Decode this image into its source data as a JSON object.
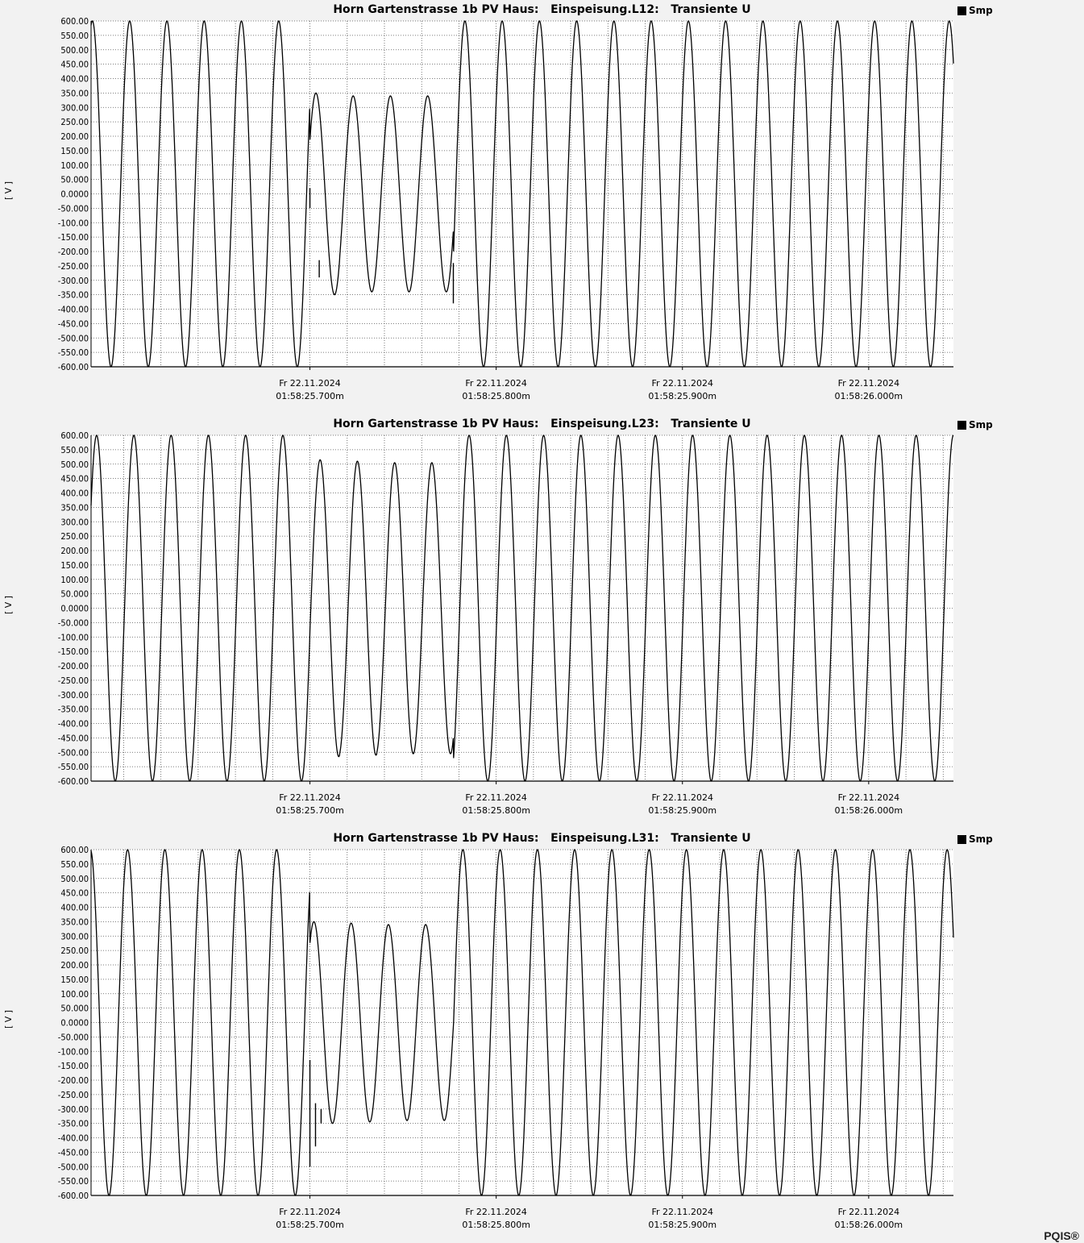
{
  "brand": "PQIS®",
  "chart_data": [
    {
      "type": "line",
      "title": "Horn Gartenstrasse 1b PV Haus:   Einspeisung.L12:   Transiente U",
      "ylabel": "[ V ]",
      "legend": "Smp",
      "legend_position": "top-right",
      "ylim": [
        -600,
        600
      ],
      "grid": true,
      "y_ticks": [
        "600.00",
        "550.00",
        "500.00",
        "450.00",
        "400.00",
        "350.00",
        "300.00",
        "250.00",
        "200.00",
        "150.00",
        "100.00",
        "50.000",
        "0.0000",
        "-50.000",
        "-100.00",
        "-150.00",
        "-200.00",
        "-250.00",
        "-300.00",
        "-350.00",
        "-400.00",
        "-450.00",
        "-500.00",
        "-550.00",
        "-600.00"
      ],
      "x_ticks": [
        {
          "date": "Fr 22.11.2024",
          "time": "01:58:25.700m"
        },
        {
          "date": "Fr 22.11.2024",
          "time": "01:58:25.800m"
        },
        {
          "date": "Fr 22.11.2024",
          "time": "01:58:25.900m"
        },
        {
          "date": "Fr 22.11.2024",
          "time": "01:58:26.000m"
        }
      ],
      "series": [
        {
          "frequency_hz": 50,
          "nominal_amplitude_v": 600,
          "sag_start_s": 0.7,
          "sag_end_s": 0.777,
          "sag_peak_amplitude_v": [
            350,
            340,
            340
          ]
        }
      ]
    },
    {
      "type": "line",
      "title": "Horn Gartenstrasse 1b PV Haus:   Einspeisung.L23:   Transiente U",
      "ylabel": "[ V ]",
      "legend": "Smp",
      "legend_position": "top-right",
      "ylim": [
        -600,
        600
      ],
      "grid": true,
      "y_ticks": [
        "600.00",
        "550.00",
        "500.00",
        "450.00",
        "400.00",
        "350.00",
        "300.00",
        "250.00",
        "200.00",
        "150.00",
        "100.00",
        "50.000",
        "0.0000",
        "-50.000",
        "-100.00",
        "-150.00",
        "-200.00",
        "-250.00",
        "-300.00",
        "-350.00",
        "-400.00",
        "-450.00",
        "-500.00",
        "-550.00",
        "-600.00"
      ],
      "x_ticks": [
        {
          "date": "Fr 22.11.2024",
          "time": "01:58:25.700m"
        },
        {
          "date": "Fr 22.11.2024",
          "time": "01:58:25.800m"
        },
        {
          "date": "Fr 22.11.2024",
          "time": "01:58:25.900m"
        },
        {
          "date": "Fr 22.11.2024",
          "time": "01:58:26.000m"
        }
      ],
      "series": [
        {
          "frequency_hz": 50,
          "nominal_amplitude_v": 600,
          "sag_start_s": 0.7,
          "sag_end_s": 0.777,
          "sag_peak_amplitude_v": [
            515,
            510,
            505
          ]
        }
      ]
    },
    {
      "type": "line",
      "title": "Horn Gartenstrasse 1b PV Haus:   Einspeisung.L31:   Transiente U",
      "ylabel": "[ V ]",
      "legend": "Smp",
      "legend_position": "top-right",
      "ylim": [
        -600,
        600
      ],
      "grid": true,
      "y_ticks": [
        "600.00",
        "550.00",
        "500.00",
        "450.00",
        "400.00",
        "350.00",
        "300.00",
        "250.00",
        "200.00",
        "150.00",
        "100.00",
        "50.000",
        "0.0000",
        "-50.000",
        "-100.00",
        "-150.00",
        "-200.00",
        "-250.00",
        "-300.00",
        "-350.00",
        "-400.00",
        "-450.00",
        "-500.00",
        "-550.00",
        "-600.00"
      ],
      "x_ticks": [
        {
          "date": "Fr 22.11.2024",
          "time": "01:58:25.700m"
        },
        {
          "date": "Fr 22.11.2024",
          "time": "01:58:25.800m"
        },
        {
          "date": "Fr 22.11.2024",
          "time": "01:58:25.900m"
        },
        {
          "date": "Fr 22.11.2024",
          "time": "01:58:26.000m"
        }
      ],
      "series": [
        {
          "frequency_hz": 50,
          "nominal_amplitude_v": 600,
          "sag_start_s": 0.7,
          "sag_end_s": 0.777,
          "sag_peak_amplitude_v": [
            350,
            345,
            340
          ]
        }
      ]
    }
  ]
}
